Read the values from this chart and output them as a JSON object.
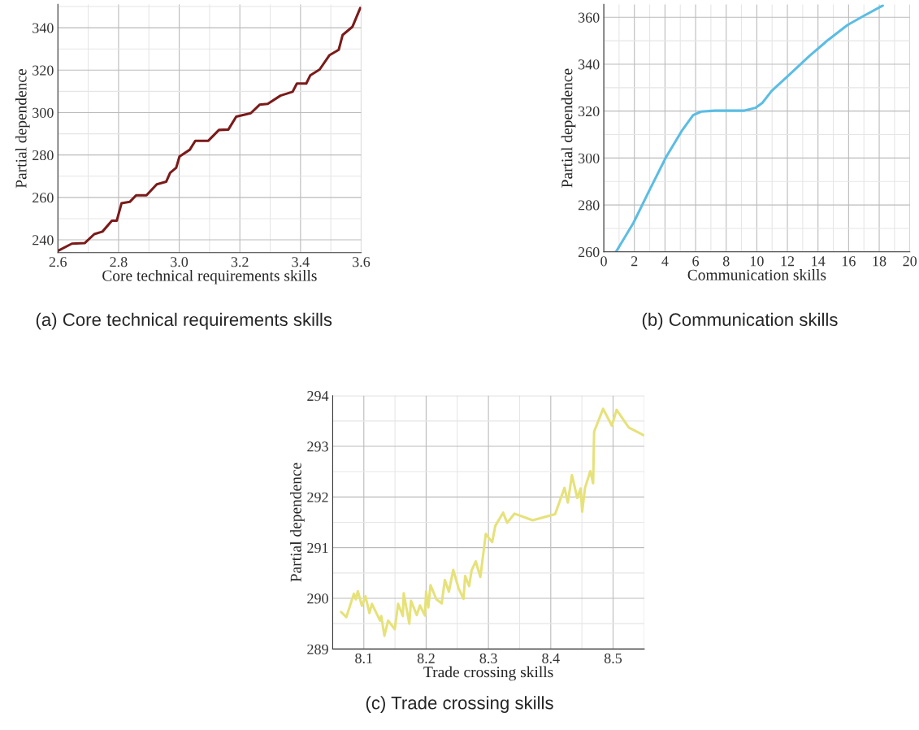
{
  "chart_data": [
    {
      "type": "line",
      "xlabel": "Core technical requirements skills",
      "ylabel": "Partial dependence",
      "annotations": [
        "(a) Core technical requirements skills"
      ],
      "grid": true,
      "xlim": [
        2.6,
        3.6
      ],
      "xticks": [
        {
          "value": 2.6,
          "label": "2.6"
        },
        {
          "value": 2.8,
          "label": "2.8"
        },
        {
          "value": 3.0,
          "label": "3.0"
        },
        {
          "value": 3.2,
          "label": "3.2"
        },
        {
          "value": 3.4,
          "label": "3.4"
        },
        {
          "value": 3.6,
          "label": "3.6"
        }
      ],
      "ylim": [
        234,
        351
      ],
      "yticks": [
        240,
        260,
        280,
        300,
        320,
        340
      ],
      "series": [
        {
          "color": "#7b1a1a",
          "x": [
            2.6,
            2.646,
            2.689,
            2.72,
            2.747,
            2.778,
            2.794,
            2.81,
            2.837,
            2.858,
            2.892,
            2.926,
            2.957,
            2.97,
            2.99,
            3.001,
            3.035,
            3.053,
            3.096,
            3.131,
            3.162,
            3.188,
            3.236,
            3.265,
            3.292,
            3.334,
            3.374,
            3.388,
            3.419,
            3.432,
            3.463,
            3.495,
            3.526,
            3.539,
            3.571,
            3.597
          ],
          "values": [
            234.8,
            238.2,
            238.5,
            242.7,
            243.9,
            249.0,
            249.0,
            257.3,
            257.9,
            261.0,
            261.0,
            266.2,
            267.4,
            271.6,
            274.0,
            279.3,
            282.5,
            286.7,
            286.7,
            291.8,
            292.0,
            298.1,
            299.7,
            303.7,
            304.1,
            308.0,
            309.8,
            313.7,
            313.7,
            317.5,
            320.3,
            327.0,
            329.6,
            336.6,
            340.4,
            349.3
          ]
        }
      ]
    },
    {
      "type": "line",
      "xlabel": "Communication skills",
      "ylabel": "Partial dependence",
      "annotations": [
        "(b) Communication skills"
      ],
      "grid": true,
      "xlim": [
        0,
        20
      ],
      "xticks": [
        0,
        2,
        4,
        6,
        8,
        10,
        12,
        14,
        16,
        18,
        20
      ],
      "ylim": [
        260,
        365.5
      ],
      "yticks": [
        260,
        280,
        300,
        320,
        340,
        360
      ],
      "series": [
        {
          "color": "#5bbde4",
          "x": [
            0.8,
            1.95,
            3.0,
            4.07,
            5.13,
            5.84,
            6.37,
            7.26,
            8.14,
            9.2,
            9.91,
            10.35,
            10.97,
            12.04,
            13.45,
            14.69,
            15.93,
            16.99,
            18.23
          ],
          "values": [
            260,
            272.5,
            286.5,
            300.4,
            311.9,
            318.3,
            319.8,
            320.2,
            320.2,
            320.2,
            321.4,
            323.4,
            328.6,
            335.0,
            343.6,
            350.5,
            356.7,
            360.6,
            365.0
          ]
        }
      ]
    },
    {
      "type": "line",
      "xlabel": "Trade crossing skills",
      "ylabel": "Partial dependence",
      "annotations": [
        "(c) Trade crossing skills"
      ],
      "grid": true,
      "xlim": [
        8.05,
        8.55
      ],
      "xticks": [
        8.1,
        8.2,
        8.3,
        8.4,
        8.5
      ],
      "ylim": [
        289,
        294
      ],
      "yticks": [
        289,
        290,
        291,
        292,
        293,
        294
      ],
      "series": [
        {
          "color": "#e6e27a",
          "x": [
            8.0635,
            8.072,
            8.084,
            8.087,
            8.0904,
            8.097,
            8.1026,
            8.109,
            8.113,
            8.126,
            8.128,
            8.133,
            8.139,
            8.1496,
            8.155,
            8.1626,
            8.164,
            8.173,
            8.1757,
            8.185,
            8.19,
            8.198,
            8.2,
            8.2035,
            8.207,
            8.2165,
            8.225,
            8.23,
            8.2365,
            8.2435,
            8.252,
            8.26,
            8.2626,
            8.269,
            8.273,
            8.2796,
            8.287,
            8.2957,
            8.306,
            8.311,
            8.3235,
            8.33,
            8.3417,
            8.371,
            8.407,
            8.422,
            8.4274,
            8.434,
            8.4426,
            8.448,
            8.4504,
            8.455,
            8.4635,
            8.468,
            8.4696,
            8.484,
            8.498,
            8.5057,
            8.5252,
            8.549
          ],
          "values": [
            289.73,
            289.63,
            290.09,
            289.98,
            290.14,
            289.85,
            290.04,
            289.71,
            289.89,
            289.56,
            289.65,
            289.26,
            289.56,
            289.39,
            289.89,
            289.65,
            290.1,
            289.5,
            289.95,
            289.67,
            289.86,
            289.66,
            290.13,
            289.82,
            290.26,
            289.98,
            289.9,
            290.36,
            290.13,
            290.56,
            290.2,
            289.99,
            290.44,
            290.24,
            290.55,
            290.73,
            290.42,
            291.27,
            291.11,
            291.43,
            291.69,
            291.49,
            291.67,
            291.54,
            291.66,
            292.18,
            291.89,
            292.43,
            291.98,
            292.17,
            291.71,
            292.18,
            292.51,
            292.27,
            293.29,
            293.74,
            293.41,
            293.72,
            293.37,
            293.22
          ]
        }
      ]
    }
  ]
}
